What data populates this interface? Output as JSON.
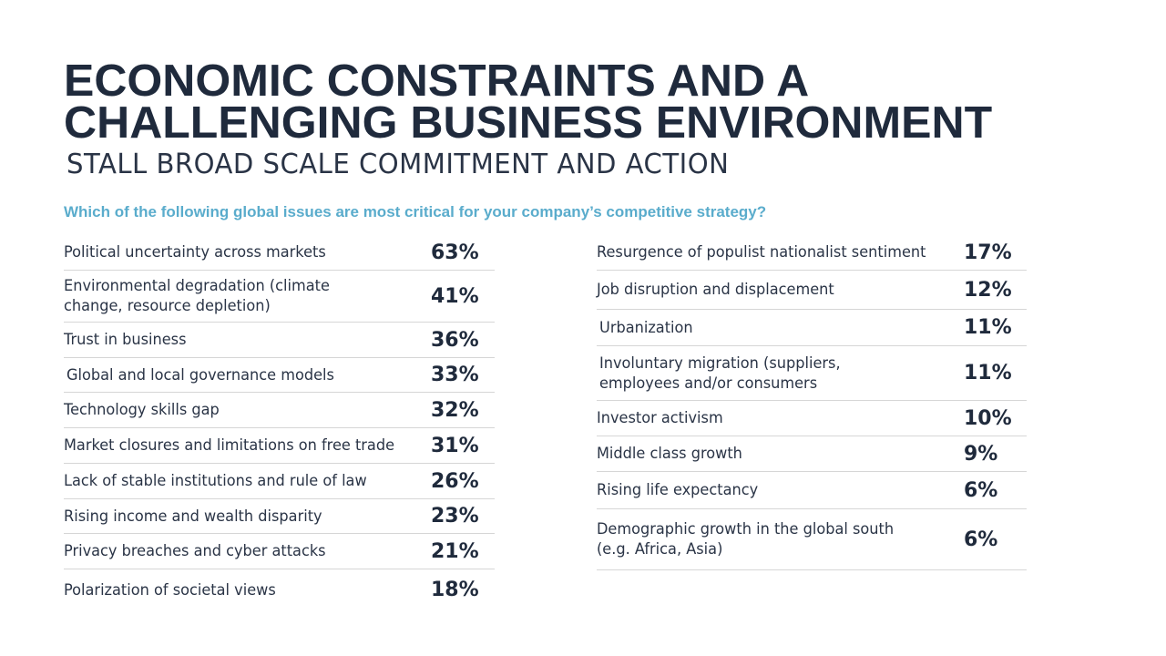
{
  "title_line1": "ECONOMIC CONSTRAINTS AND A",
  "title_line2": "CHALLENGING BUSINESS ENVIRONMENT",
  "subtitle": "STALL BROAD SCALE COMMITMENT AND ACTION",
  "question": "Which of the following global issues are most critical for your company’s competitive strategy?",
  "left_items": [
    {
      "label": "Political uncertainty across markets",
      "pct": "63%"
    },
    {
      "label": "Environmental degradation (climate\nchange, resource depletion)",
      "pct": "41%"
    },
    {
      "label": "Trust in business",
      "pct": "36%"
    },
    {
      "label": "Global and local governance models",
      "pct": "33%"
    },
    {
      "label": "Technology skills gap",
      "pct": "32%"
    },
    {
      "label": "Market closures and limitations on free trade",
      "pct": "31%"
    },
    {
      "label": "Lack of stable institutions and rule of law",
      "pct": "26%"
    },
    {
      "label": "Rising income and wealth disparity",
      "pct": "23%"
    },
    {
      "label": "Privacy breaches and cyber attacks",
      "pct": "21%"
    },
    {
      "label": "Polarization of societal views",
      "pct": "18%"
    }
  ],
  "right_items": [
    {
      "label": "Resurgence of populist nationalist sentiment",
      "pct": "17%"
    },
    {
      "label": "Job disruption and displacement",
      "pct": "12%"
    },
    {
      "label": "Urbanization",
      "pct": "11%"
    },
    {
      "label": "Involuntary migration (suppliers,\nemployees and/or consumers",
      "pct": "11%"
    },
    {
      "label": "Investor activism",
      "pct": "10%"
    },
    {
      "label": "Middle class growth",
      "pct": "9%"
    },
    {
      "label": "Rising life expectancy",
      "pct": "6%"
    },
    {
      "label": "Demographic growth in the global south\n(e.g. Africa, Asia)",
      "pct": "6%"
    }
  ]
}
